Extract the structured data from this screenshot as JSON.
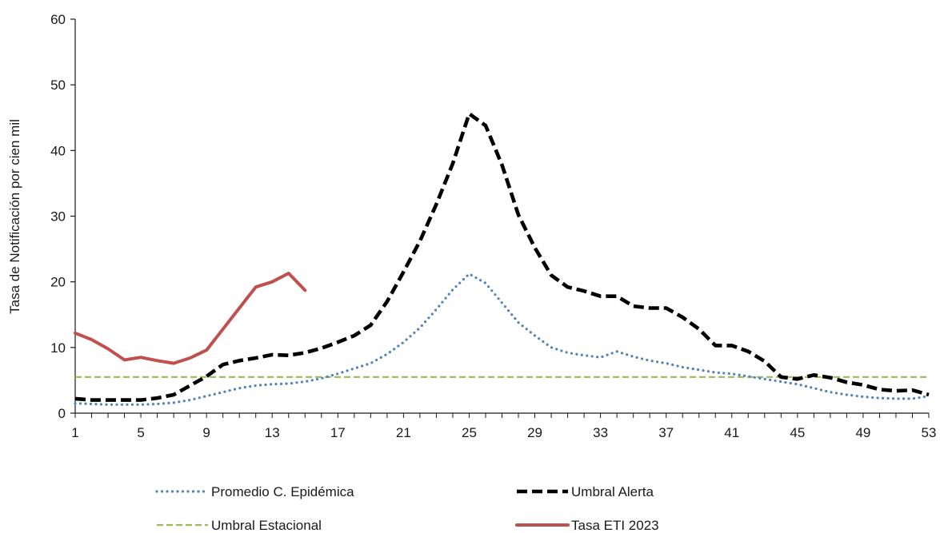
{
  "chart_data": {
    "type": "line",
    "ylabel": "Tasa de Notificación por cien mil",
    "xlabel": "",
    "ylim": [
      0,
      60
    ],
    "xlim": [
      1,
      53
    ],
    "yticks": [
      0,
      10,
      20,
      30,
      40,
      50,
      60
    ],
    "xticks": [
      1,
      5,
      9,
      13,
      17,
      21,
      25,
      29,
      33,
      37,
      41,
      45,
      49,
      53
    ],
    "grid": false,
    "legend_position": "bottom",
    "colors": {
      "promedio": "#4f81bd",
      "alerta": "#000000",
      "estacional": "#9bbb59",
      "tasa": "#c0504d"
    },
    "series": [
      {
        "name": "Promedio  C. Epidémica",
        "key": "promedio",
        "style": "dotted",
        "x": [
          1,
          2,
          3,
          4,
          5,
          6,
          7,
          8,
          9,
          10,
          11,
          12,
          13,
          14,
          15,
          16,
          17,
          18,
          19,
          20,
          21,
          22,
          23,
          24,
          25,
          26,
          27,
          28,
          29,
          30,
          31,
          32,
          33,
          34,
          35,
          36,
          37,
          38,
          39,
          40,
          41,
          42,
          43,
          44,
          45,
          46,
          47,
          48,
          49,
          50,
          51,
          52,
          53
        ],
        "values": [
          1.5,
          1.4,
          1.3,
          1.3,
          1.3,
          1.4,
          1.6,
          2.0,
          2.6,
          3.2,
          3.8,
          4.2,
          4.4,
          4.5,
          4.8,
          5.3,
          6.0,
          6.8,
          7.6,
          9.0,
          10.8,
          13.0,
          15.8,
          18.8,
          21.2,
          19.8,
          16.8,
          13.8,
          11.8,
          10.0,
          9.2,
          8.8,
          8.5,
          9.4,
          8.6,
          8.0,
          7.6,
          7.0,
          6.6,
          6.2,
          6.0,
          5.6,
          5.2,
          4.8,
          4.4,
          3.8,
          3.2,
          2.8,
          2.5,
          2.3,
          2.2,
          2.2,
          2.6
        ]
      },
      {
        "name": "Umbral Alerta",
        "key": "alerta",
        "style": "dashed",
        "x": [
          1,
          2,
          3,
          4,
          5,
          6,
          7,
          8,
          9,
          10,
          11,
          12,
          13,
          14,
          15,
          16,
          17,
          18,
          19,
          20,
          21,
          22,
          23,
          24,
          25,
          26,
          27,
          28,
          29,
          30,
          31,
          32,
          33,
          34,
          35,
          36,
          37,
          38,
          39,
          40,
          41,
          42,
          43,
          44,
          45,
          46,
          47,
          48,
          49,
          50,
          51,
          52,
          53
        ],
        "values": [
          2.2,
          2.0,
          2.0,
          2.0,
          2.0,
          2.3,
          2.8,
          4.2,
          5.6,
          7.4,
          8.0,
          8.4,
          8.9,
          8.8,
          9.2,
          9.9,
          10.8,
          11.8,
          13.4,
          17.0,
          21.5,
          26.2,
          31.8,
          38.0,
          45.6,
          43.8,
          37.8,
          30.2,
          25.2,
          21.0,
          19.2,
          18.6,
          17.8,
          17.8,
          16.3,
          16.0,
          16.0,
          14.6,
          12.8,
          10.3,
          10.3,
          9.4,
          7.9,
          5.5,
          5.2,
          5.8,
          5.4,
          4.7,
          4.3,
          3.6,
          3.4,
          3.5,
          2.8
        ]
      },
      {
        "name": "Umbral Estacional",
        "key": "estacional",
        "style": "dashed-thin",
        "x": [
          1,
          53
        ],
        "values": [
          5.5,
          5.5
        ]
      },
      {
        "name": "Tasa ETI  2023",
        "key": "tasa",
        "style": "solid",
        "x": [
          1,
          2,
          3,
          4,
          5,
          6,
          7,
          8,
          9,
          10,
          11,
          12,
          13,
          14,
          15
        ],
        "values": [
          12.2,
          11.2,
          9.8,
          8.1,
          8.5,
          8.0,
          7.6,
          8.4,
          9.6,
          12.8,
          16.0,
          19.2,
          20.0,
          21.3,
          18.7
        ]
      }
    ]
  }
}
